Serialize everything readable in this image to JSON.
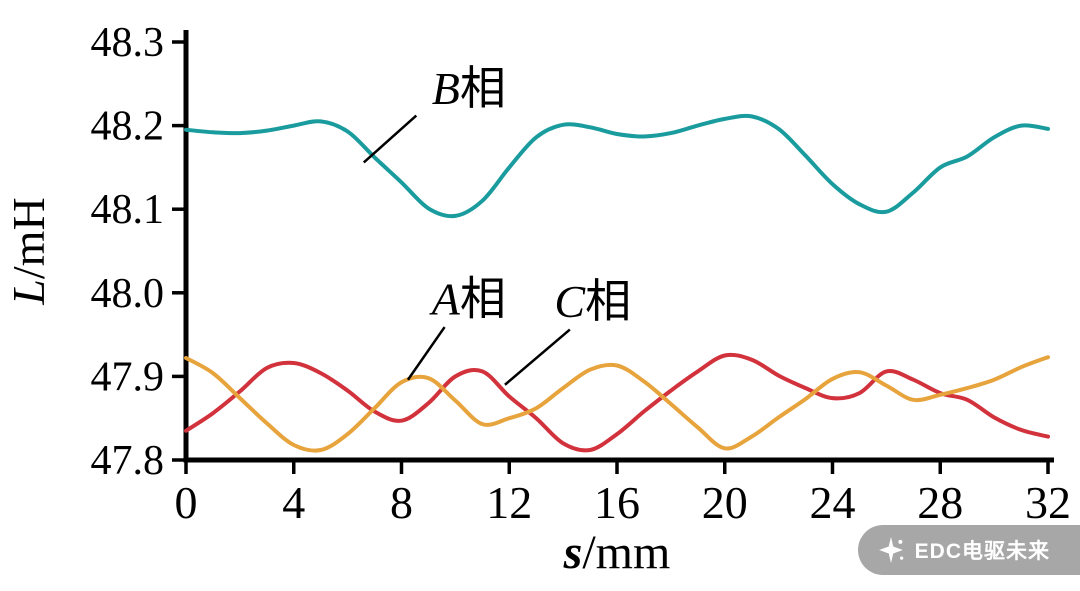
{
  "chart_data": {
    "type": "line",
    "title": "",
    "xlabel": {
      "italic": "s",
      "rest": "/mm"
    },
    "ylabel": {
      "italic": "L",
      "rest": "/mH"
    },
    "xlim": [
      0,
      32
    ],
    "ylim": [
      47.8,
      48.3
    ],
    "x_ticks": [
      0,
      4,
      8,
      12,
      16,
      20,
      24,
      28,
      32
    ],
    "y_ticks": [
      47.8,
      47.9,
      48.0,
      48.1,
      48.2,
      48.3
    ],
    "grid": false,
    "legend_position": "none",
    "x": [
      0,
      1,
      2,
      3,
      4,
      5,
      6,
      7,
      8,
      9,
      10,
      11,
      12,
      13,
      14,
      15,
      16,
      17,
      18,
      19,
      20,
      21,
      22,
      23,
      24,
      25,
      26,
      27,
      28,
      29,
      30,
      31,
      32
    ],
    "series": [
      {
        "name": "B相",
        "color": "#1a9c9f",
        "values": [
          48.195,
          48.192,
          48.191,
          48.194,
          48.2,
          48.205,
          48.193,
          48.162,
          48.132,
          48.101,
          48.092,
          48.11,
          48.15,
          48.186,
          48.201,
          48.198,
          48.19,
          48.187,
          48.191,
          48.2,
          48.208,
          48.211,
          48.196,
          48.164,
          48.13,
          48.106,
          48.097,
          48.12,
          48.15,
          48.163,
          48.186,
          48.2,
          48.196
        ]
      },
      {
        "name": "A相",
        "color": "#d2323c",
        "values": [
          47.835,
          47.856,
          47.882,
          47.91,
          47.916,
          47.904,
          47.883,
          47.858,
          47.847,
          47.868,
          47.9,
          47.906,
          47.876,
          47.85,
          47.82,
          47.812,
          47.831,
          47.858,
          47.883,
          47.906,
          47.925,
          47.92,
          47.901,
          47.886,
          47.874,
          47.88,
          47.906,
          47.896,
          47.88,
          47.872,
          47.851,
          47.836,
          47.828
        ]
      },
      {
        "name": "C相",
        "color": "#e7a33c",
        "values": [
          47.922,
          47.904,
          47.874,
          47.844,
          47.818,
          47.812,
          47.831,
          47.862,
          47.893,
          47.898,
          47.871,
          47.843,
          47.85,
          47.862,
          47.886,
          47.908,
          47.913,
          47.894,
          47.867,
          47.839,
          47.814,
          47.828,
          47.851,
          47.873,
          47.897,
          47.905,
          47.889,
          47.872,
          47.878,
          47.886,
          47.896,
          47.911,
          47.923
        ]
      }
    ],
    "annotations": [
      {
        "letter": "B",
        "suffix": "相",
        "text_x": 10.5,
        "text_y": 48.245,
        "line_from": [
          8.55,
          48.212
        ],
        "line_to": [
          6.6,
          48.156
        ]
      },
      {
        "letter": "A",
        "suffix": "相",
        "text_x": 10.5,
        "text_y": 47.993,
        "line_from": [
          9.6,
          47.959
        ],
        "line_to": [
          8.24,
          47.896
        ]
      },
      {
        "letter": "C",
        "suffix": "相",
        "text_x": 15.1,
        "text_y": 47.99,
        "line_from": [
          14.25,
          47.956
        ],
        "line_to": [
          11.84,
          47.89
        ]
      }
    ],
    "axis_color": "#000000"
  },
  "watermark": {
    "text": "EDC电驱未来",
    "icon": "edc-logo-icon",
    "bg_color": "#a7a7a7",
    "text_color": "#ffffff"
  }
}
